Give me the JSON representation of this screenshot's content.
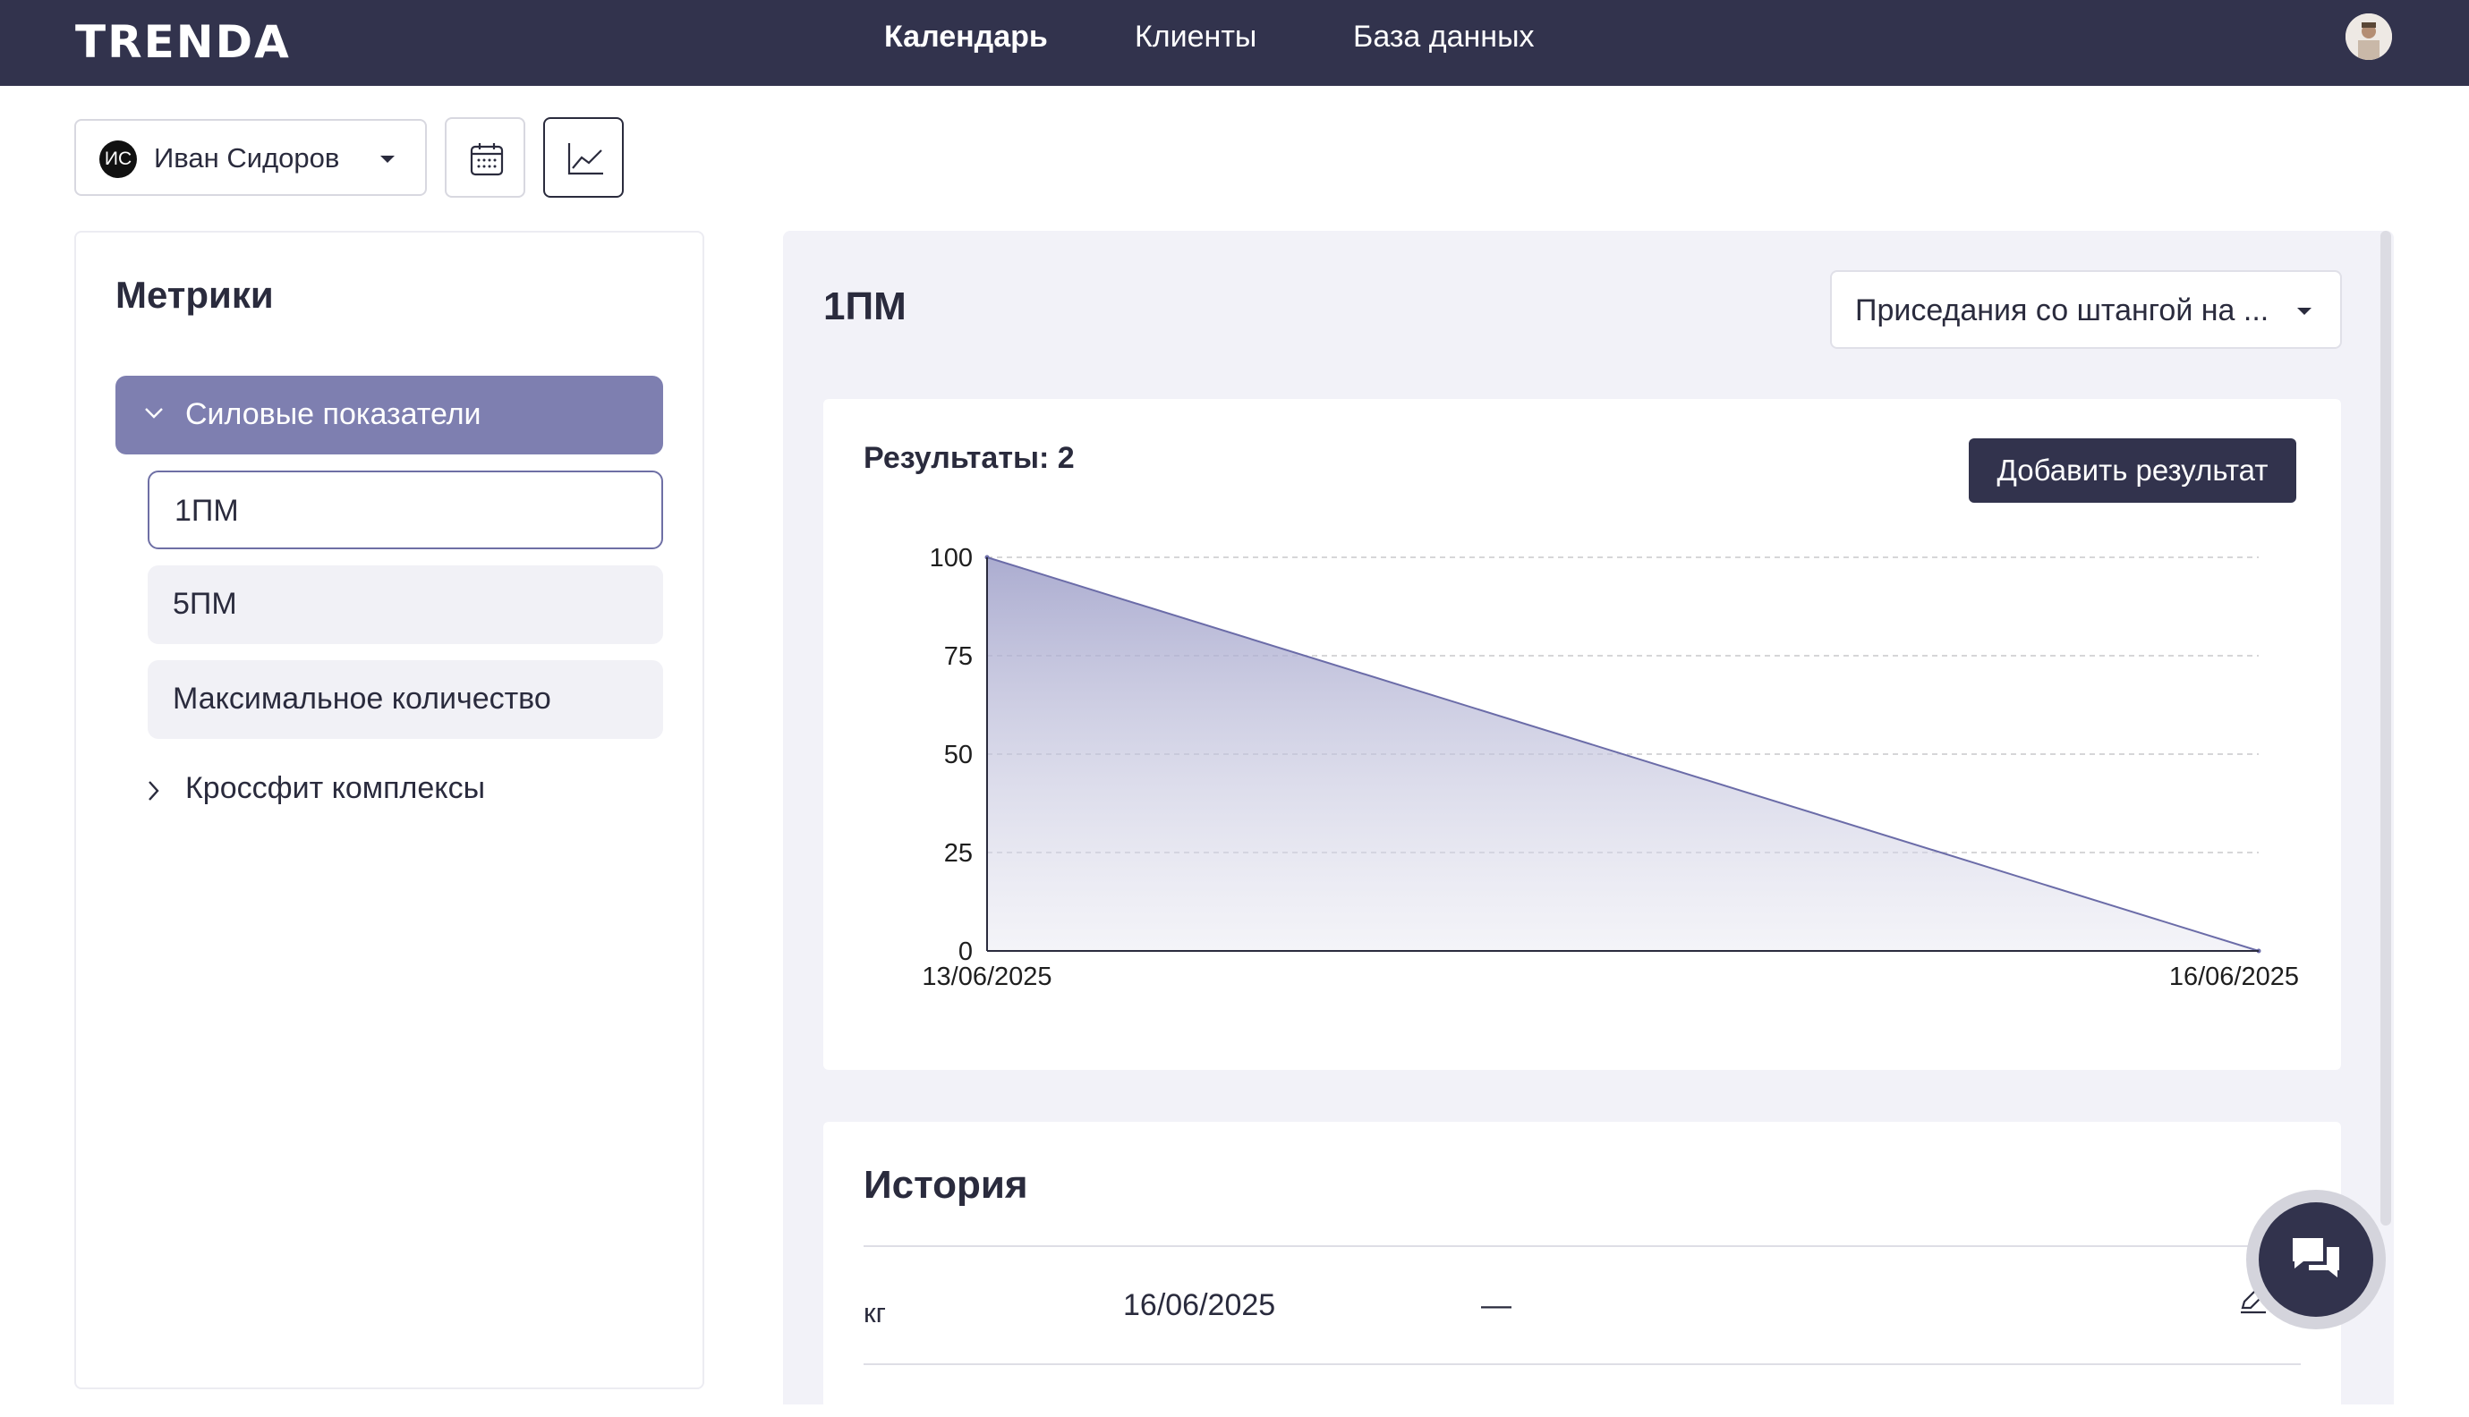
{
  "app": {
    "logo": "TRENDA"
  },
  "nav": {
    "items": [
      {
        "label": "Календарь",
        "active": true
      },
      {
        "label": "Клиенты",
        "active": false
      },
      {
        "label": "База данных",
        "active": false
      }
    ]
  },
  "toolbar": {
    "client_initials": "ИС",
    "client_name": "Иван Сидоров",
    "calendar_view_icon": "calendar-icon",
    "chart_view_icon": "chart-icon",
    "active_view": "chart"
  },
  "sidebar": {
    "title": "Метрики",
    "groups": [
      {
        "label": "Силовые показатели",
        "expanded": true,
        "items": [
          {
            "label": "1ПМ",
            "selected": true
          },
          {
            "label": "5ПМ",
            "selected": false
          },
          {
            "label": "Максимальное количество",
            "selected": false
          }
        ]
      },
      {
        "label": "Кроссфит комплексы",
        "expanded": false,
        "items": []
      }
    ]
  },
  "main": {
    "metric_title": "1ПМ",
    "exercise_select": {
      "value": "Приседания со штангой на ..."
    },
    "results": {
      "label": "Результаты: 2",
      "add_button": "Добавить результат"
    },
    "history": {
      "title": "История",
      "rows": [
        {
          "unit": "кг",
          "date": "16/06/2025",
          "value": "—"
        }
      ]
    }
  },
  "colors": {
    "navbar": "#32334d",
    "accent": "#7e7fb0",
    "series": "#6b6ca8",
    "panel_bg": "#f2f2f8"
  },
  "chart_data": {
    "type": "area",
    "x": [
      "13/06/2025",
      "16/06/2025"
    ],
    "series": [
      {
        "values": [
          100,
          0
        ]
      }
    ],
    "yticks": [
      0,
      25,
      50,
      75,
      100
    ],
    "ylim": [
      0,
      100
    ],
    "grid": true
  }
}
